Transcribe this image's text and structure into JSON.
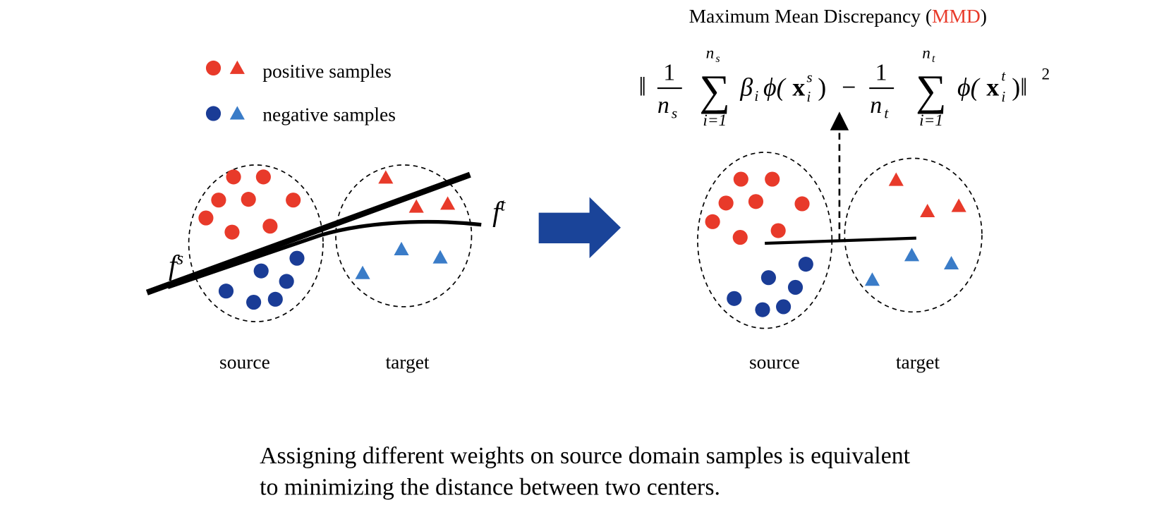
{
  "legend": {
    "positive": "positive samples",
    "negative": "negative samples"
  },
  "left": {
    "source": "source",
    "target": "target",
    "f_s": "f",
    "f_s_sup": "s",
    "f_t": "f",
    "f_t_sup": "t"
  },
  "right": {
    "source": "source",
    "target": "target"
  },
  "title": {
    "prefix": "Maximum Mean Discrepancy (",
    "highlight": "MMD",
    "suffix": ")"
  },
  "formula": [
    "‖",
    "1",
    "n",
    "s",
    "∑",
    "n",
    "s",
    "i=1",
    "β",
    "i",
    "ϕ(",
    "x",
    "s",
    "i",
    ")",
    "−",
    "1",
    "n",
    "t",
    "∑",
    "n",
    "t",
    "i=1",
    "ϕ(",
    "x",
    "t",
    "i",
    ")‖",
    "2"
  ],
  "caption": [
    "Assigning different weights on source domain samples is equivalent",
    "to minimizing the distance between two centers."
  ]
}
